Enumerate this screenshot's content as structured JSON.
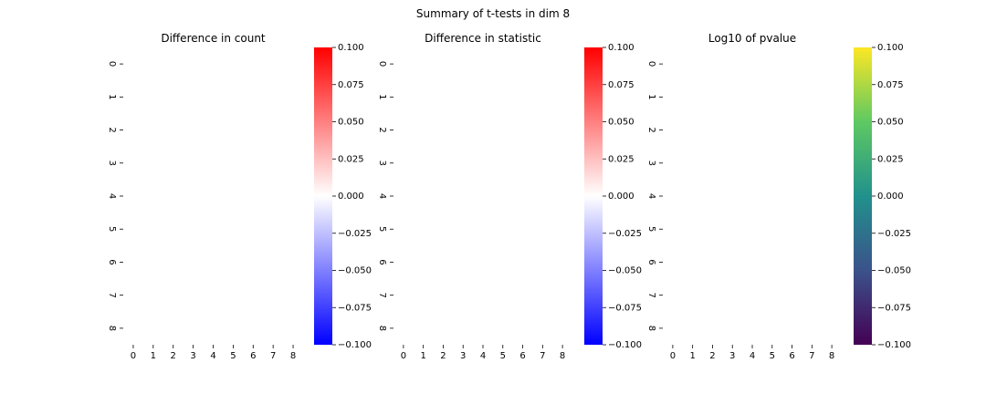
{
  "figure": {
    "suptitle": "Summary of t-tests in dim 8"
  },
  "chart_data": [
    {
      "type": "heatmap",
      "title": "Difference in count",
      "xlabel": "",
      "ylabel": "",
      "x_ticks": [
        "0",
        "1",
        "2",
        "3",
        "4",
        "5",
        "6",
        "7",
        "8"
      ],
      "y_ticks": [
        "0",
        "1",
        "2",
        "3",
        "4",
        "5",
        "6",
        "7",
        "8"
      ],
      "values": [],
      "colormap": "bwr",
      "colormap_colors": [
        "#0000ff",
        "#ffffff",
        "#ff0000"
      ],
      "colorbar_range": [
        -0.1,
        0.1
      ],
      "colorbar_ticks": [
        "0.100",
        "0.075",
        "0.050",
        "0.025",
        "0.000",
        "−0.025",
        "−0.050",
        "−0.075",
        "−0.100"
      ],
      "grid": false
    },
    {
      "type": "heatmap",
      "title": "Difference in statistic",
      "xlabel": "",
      "ylabel": "",
      "x_ticks": [
        "0",
        "1",
        "2",
        "3",
        "4",
        "5",
        "6",
        "7",
        "8"
      ],
      "y_ticks": [
        "0",
        "1",
        "2",
        "3",
        "4",
        "5",
        "6",
        "7",
        "8"
      ],
      "values": [],
      "colormap": "bwr",
      "colormap_colors": [
        "#0000ff",
        "#ffffff",
        "#ff0000"
      ],
      "colorbar_range": [
        -0.1,
        0.1
      ],
      "colorbar_ticks": [
        "0.100",
        "0.075",
        "0.050",
        "0.025",
        "0.000",
        "−0.025",
        "−0.050",
        "−0.075",
        "−0.100"
      ],
      "grid": false
    },
    {
      "type": "heatmap",
      "title": "Log10 of pvalue",
      "xlabel": "",
      "ylabel": "",
      "x_ticks": [
        "0",
        "1",
        "2",
        "3",
        "4",
        "5",
        "6",
        "7",
        "8"
      ],
      "y_ticks": [
        "0",
        "1",
        "2",
        "3",
        "4",
        "5",
        "6",
        "7",
        "8"
      ],
      "values": [],
      "colormap": "viridis",
      "colormap_colors": [
        "#440154",
        "#3b528b",
        "#21918c",
        "#5ec962",
        "#fde725"
      ],
      "colorbar_range": [
        -0.1,
        0.1
      ],
      "colorbar_ticks": [
        "0.100",
        "0.075",
        "0.050",
        "0.025",
        "0.000",
        "−0.025",
        "−0.050",
        "−0.075",
        "−0.100"
      ],
      "grid": false
    }
  ]
}
